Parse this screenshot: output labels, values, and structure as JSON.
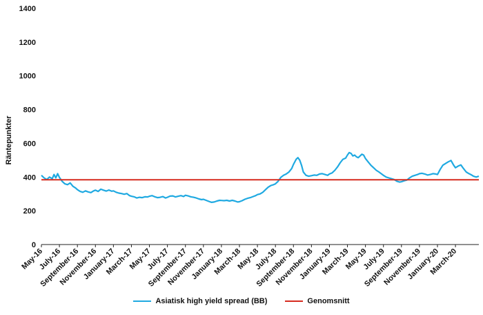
{
  "chart_data": {
    "type": "line",
    "ylabel": "Räntepunkter",
    "xlabel": "",
    "title": "",
    "ylim": [
      0,
      1400
    ],
    "yticks": [
      0,
      200,
      400,
      600,
      800,
      1000,
      1200,
      1400
    ],
    "xticks": [
      "May-16",
      "July-16",
      "September-16",
      "November-16",
      "January-17",
      "March-17",
      "May-17",
      "July-17",
      "September-17",
      "November-17",
      "January-18",
      "March-18",
      "May-18",
      "July-18",
      "September-18",
      "November-18",
      "January-19",
      "March-19",
      "May-19",
      "July-19",
      "September-19",
      "November-19",
      "January-20",
      "March-20"
    ],
    "x_range_months": [
      0,
      48.6
    ],
    "grid": false,
    "legend_position": "bottom",
    "series": [
      {
        "name": "Asiatisk high yield spread (BB)",
        "color": "#1fa9e1",
        "points": [
          [
            0,
            410
          ],
          [
            0.3,
            395
          ],
          [
            0.6,
            385
          ],
          [
            0.9,
            400
          ],
          [
            1.2,
            390
          ],
          [
            1.4,
            415
          ],
          [
            1.6,
            395
          ],
          [
            1.8,
            420
          ],
          [
            2.0,
            398
          ],
          [
            2.3,
            375
          ],
          [
            2.6,
            360
          ],
          [
            2.9,
            355
          ],
          [
            3.2,
            365
          ],
          [
            3.5,
            345
          ],
          [
            3.8,
            335
          ],
          [
            4.0,
            325
          ],
          [
            4.3,
            315
          ],
          [
            4.6,
            310
          ],
          [
            4.9,
            318
          ],
          [
            5.2,
            312
          ],
          [
            5.5,
            308
          ],
          [
            5.8,
            318
          ],
          [
            6.0,
            322
          ],
          [
            6.3,
            315
          ],
          [
            6.6,
            328
          ],
          [
            6.9,
            322
          ],
          [
            7.2,
            317
          ],
          [
            7.5,
            323
          ],
          [
            7.8,
            316
          ],
          [
            8.0,
            318
          ],
          [
            8.3,
            310
          ],
          [
            8.6,
            305
          ],
          [
            8.9,
            302
          ],
          [
            9.2,
            298
          ],
          [
            9.5,
            302
          ],
          [
            9.8,
            290
          ],
          [
            10.0,
            286
          ],
          [
            10.3,
            283
          ],
          [
            10.6,
            276
          ],
          [
            10.9,
            280
          ],
          [
            11.2,
            278
          ],
          [
            11.5,
            283
          ],
          [
            11.8,
            282
          ],
          [
            12.0,
            286
          ],
          [
            12.3,
            290
          ],
          [
            12.6,
            283
          ],
          [
            12.9,
            278
          ],
          [
            13.2,
            280
          ],
          [
            13.5,
            284
          ],
          [
            13.8,
            276
          ],
          [
            14.0,
            280
          ],
          [
            14.3,
            287
          ],
          [
            14.6,
            288
          ],
          [
            14.9,
            282
          ],
          [
            15.2,
            286
          ],
          [
            15.5,
            290
          ],
          [
            15.8,
            285
          ],
          [
            16.0,
            292
          ],
          [
            16.3,
            288
          ],
          [
            16.6,
            283
          ],
          [
            16.9,
            280
          ],
          [
            17.2,
            276
          ],
          [
            17.5,
            270
          ],
          [
            17.8,
            266
          ],
          [
            18.0,
            268
          ],
          [
            18.3,
            262
          ],
          [
            18.6,
            256
          ],
          [
            18.9,
            250
          ],
          [
            19.2,
            252
          ],
          [
            19.5,
            258
          ],
          [
            19.8,
            262
          ],
          [
            20.0,
            261
          ],
          [
            20.3,
            260
          ],
          [
            20.6,
            262
          ],
          [
            20.9,
            258
          ],
          [
            21.2,
            262
          ],
          [
            21.5,
            258
          ],
          [
            21.8,
            252
          ],
          [
            22.0,
            254
          ],
          [
            22.3,
            260
          ],
          [
            22.6,
            268
          ],
          [
            22.9,
            274
          ],
          [
            23.2,
            278
          ],
          [
            23.5,
            284
          ],
          [
            23.8,
            290
          ],
          [
            24.0,
            296
          ],
          [
            24.3,
            300
          ],
          [
            24.6,
            310
          ],
          [
            24.9,
            325
          ],
          [
            25.2,
            340
          ],
          [
            25.5,
            350
          ],
          [
            25.8,
            355
          ],
          [
            26.0,
            360
          ],
          [
            26.3,
            375
          ],
          [
            26.6,
            398
          ],
          [
            26.9,
            410
          ],
          [
            27.2,
            418
          ],
          [
            27.5,
            430
          ],
          [
            27.8,
            450
          ],
          [
            28.0,
            475
          ],
          [
            28.3,
            505
          ],
          [
            28.5,
            515
          ],
          [
            28.7,
            500
          ],
          [
            28.9,
            470
          ],
          [
            29.1,
            430
          ],
          [
            29.4,
            410
          ],
          [
            29.7,
            405
          ],
          [
            30.0,
            408
          ],
          [
            30.3,
            412
          ],
          [
            30.6,
            410
          ],
          [
            30.9,
            418
          ],
          [
            31.2,
            420
          ],
          [
            31.5,
            415
          ],
          [
            31.8,
            410
          ],
          [
            32.0,
            418
          ],
          [
            32.3,
            425
          ],
          [
            32.6,
            440
          ],
          [
            32.9,
            460
          ],
          [
            33.2,
            485
          ],
          [
            33.5,
            505
          ],
          [
            33.8,
            512
          ],
          [
            34.0,
            530
          ],
          [
            34.2,
            545
          ],
          [
            34.4,
            540
          ],
          [
            34.6,
            525
          ],
          [
            34.8,
            530
          ],
          [
            35.0,
            520
          ],
          [
            35.2,
            515
          ],
          [
            35.4,
            525
          ],
          [
            35.6,
            535
          ],
          [
            35.8,
            530
          ],
          [
            36.0,
            510
          ],
          [
            36.3,
            490
          ],
          [
            36.6,
            470
          ],
          [
            36.9,
            455
          ],
          [
            37.2,
            440
          ],
          [
            37.5,
            430
          ],
          [
            37.8,
            418
          ],
          [
            38.0,
            410
          ],
          [
            38.3,
            400
          ],
          [
            38.6,
            395
          ],
          [
            38.9,
            390
          ],
          [
            39.2,
            385
          ],
          [
            39.5,
            375
          ],
          [
            39.8,
            370
          ],
          [
            40.0,
            372
          ],
          [
            40.3,
            378
          ],
          [
            40.6,
            382
          ],
          [
            40.9,
            395
          ],
          [
            41.2,
            405
          ],
          [
            41.5,
            410
          ],
          [
            41.8,
            415
          ],
          [
            42.0,
            420
          ],
          [
            42.3,
            422
          ],
          [
            42.6,
            418
          ],
          [
            42.9,
            412
          ],
          [
            43.2,
            415
          ],
          [
            43.5,
            420
          ],
          [
            43.8,
            418
          ],
          [
            44.0,
            415
          ],
          [
            44.3,
            445
          ],
          [
            44.6,
            470
          ],
          [
            44.9,
            480
          ],
          [
            45.2,
            490
          ],
          [
            45.5,
            498
          ],
          [
            45.8,
            470
          ],
          [
            46.0,
            455
          ],
          [
            46.3,
            465
          ],
          [
            46.6,
            472
          ],
          [
            46.9,
            450
          ],
          [
            47.2,
            430
          ],
          [
            47.5,
            420
          ],
          [
            47.8,
            412
          ],
          [
            48.0,
            405
          ],
          [
            48.3,
            400
          ],
          [
            48.6,
            405
          ]
        ]
      },
      {
        "name": "Genomsnitt",
        "color": "#d62a1e",
        "points": [
          [
            0,
            384
          ],
          [
            48.6,
            384
          ]
        ]
      }
    ]
  },
  "legend": {
    "items": [
      {
        "label": "Asiatisk high yield spread (BB)",
        "color": "#1fa9e1"
      },
      {
        "label": "Genomsnitt",
        "color": "#d62a1e"
      }
    ]
  }
}
